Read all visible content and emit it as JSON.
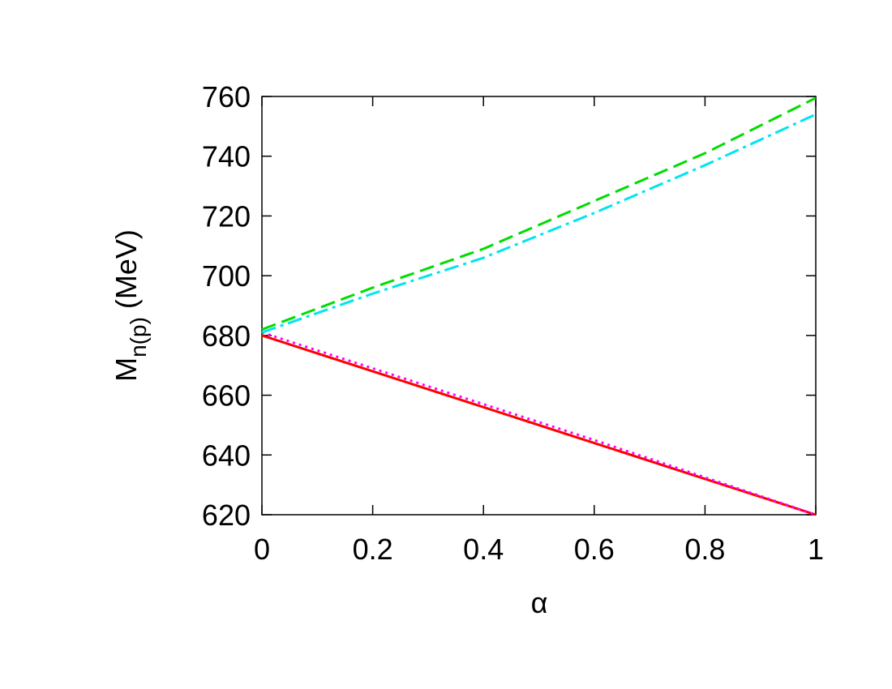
{
  "chart_data": {
    "type": "line",
    "xlabel": "α",
    "ylabel": {
      "symbol": "M",
      "subscript": "n(p)",
      "unit": "(MeV)"
    },
    "x": [
      0,
      0.2,
      0.4,
      0.6,
      0.8,
      1
    ],
    "series": [
      {
        "color": "#ff0000",
        "dash": "solid",
        "values": [
          680,
          668,
          656,
          644,
          632,
          620
        ]
      },
      {
        "color": "#ff00ff",
        "dash": "dotted",
        "values": [
          681,
          669,
          657,
          645,
          632.5,
          620
        ]
      },
      {
        "color": "#00dd00",
        "dash": "dashed",
        "values": [
          682,
          696,
          709,
          725,
          741,
          759.5
        ]
      },
      {
        "color": "#00e5ee",
        "dash": "dashdot",
        "values": [
          681,
          694,
          706,
          721,
          737,
          754
        ]
      }
    ],
    "xlim": [
      0,
      1
    ],
    "xticks": [
      0,
      0.2,
      0.4,
      0.6,
      0.8,
      1
    ],
    "ylim": [
      620,
      760
    ],
    "yticks": [
      620,
      640,
      660,
      680,
      700,
      720,
      740,
      760
    ]
  }
}
